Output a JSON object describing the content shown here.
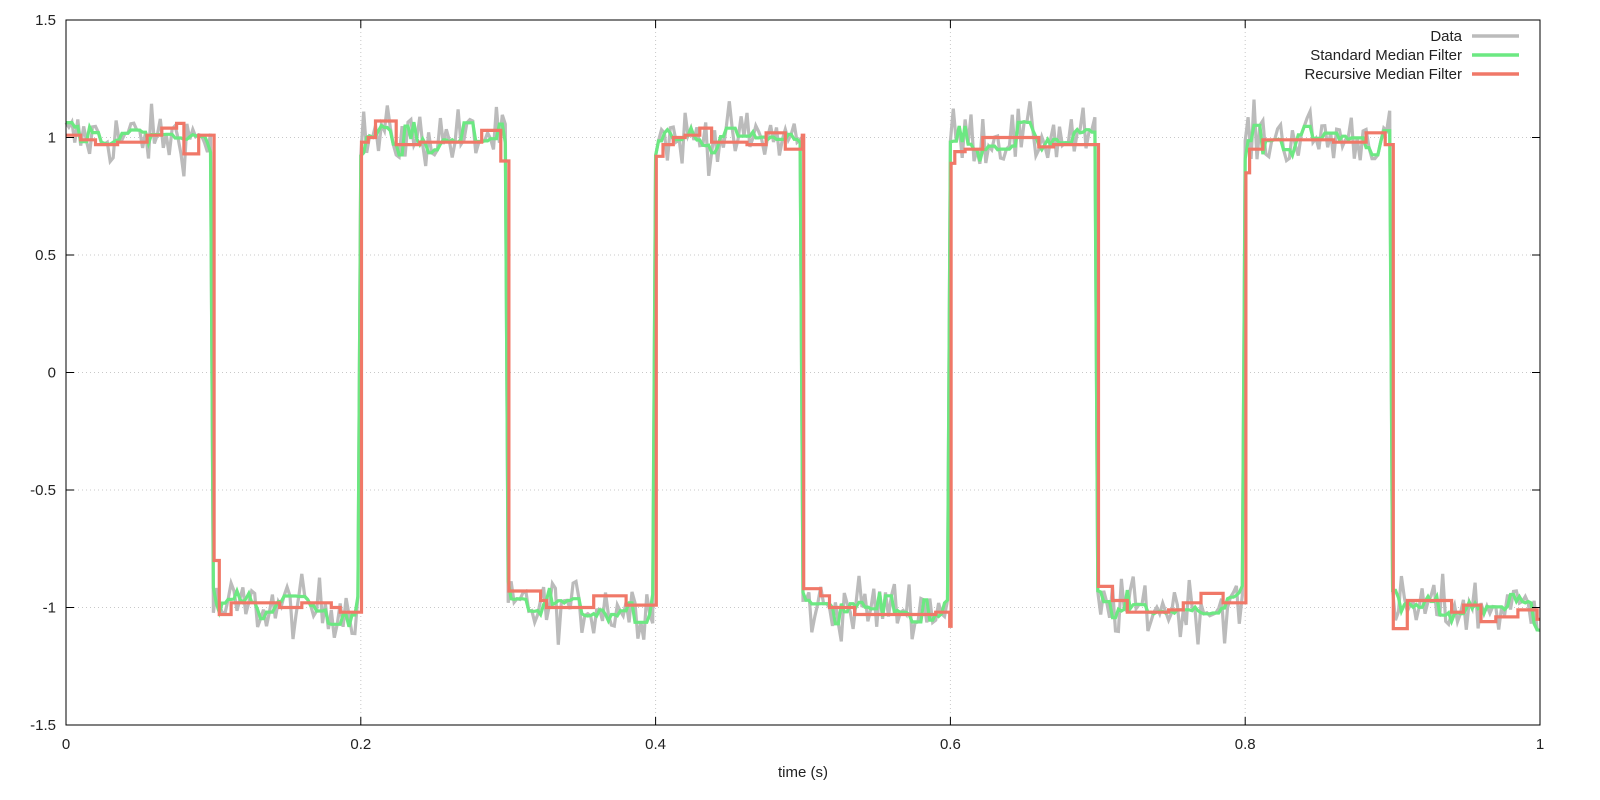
{
  "chart_data": {
    "type": "line",
    "xlabel": "time (s)",
    "ylabel": "",
    "xlim": [
      0,
      1
    ],
    "ylim": [
      -1.5,
      1.5
    ],
    "xticks": [
      0,
      0.2,
      0.4,
      0.6,
      0.8,
      1
    ],
    "xtick_labels": [
      "0",
      "0.2",
      "0.4",
      "0.6",
      "0.8",
      "1"
    ],
    "yticks": [
      -1.5,
      -1,
      -0.5,
      0,
      0.5,
      1,
      1.5
    ],
    "ytick_labels": [
      "-1.5",
      "-1",
      "-0.5",
      "0",
      "0.5",
      "1",
      "1.5"
    ],
    "grid": true,
    "legend_position": "top-right",
    "square_wave": {
      "period": 0.2,
      "high": 1,
      "low": -1,
      "first_level": 1
    },
    "series": [
      {
        "name": "Data",
        "color": "#bbbbbb",
        "noise_amplitude": 0.12,
        "description_level": "raw noisy square wave"
      },
      {
        "name": "Standard Median Filter",
        "color": "#6ce882",
        "noise_amplitude": 0.05
      },
      {
        "name": "Recursive Median Filter",
        "color": "#f07868",
        "steps": [
          [
            0,
            1.01
          ],
          [
            0.01,
            0.99
          ],
          [
            0.02,
            0.97
          ],
          [
            0.035,
            0.98
          ],
          [
            0.05,
            0.98
          ],
          [
            0.055,
            1.01
          ],
          [
            0.065,
            1.04
          ],
          [
            0.075,
            1.06
          ],
          [
            0.08,
            0.93
          ],
          [
            0.09,
            1.01
          ],
          [
            0.0995,
            1.01
          ],
          [
            0.1005,
            -0.8
          ],
          [
            0.104,
            -1.03
          ],
          [
            0.112,
            -0.98
          ],
          [
            0.145,
            -1.0
          ],
          [
            0.16,
            -0.98
          ],
          [
            0.18,
            -1.0
          ],
          [
            0.186,
            -1.02
          ],
          [
            0.1995,
            -1.02
          ],
          [
            0.2005,
            0.98
          ],
          [
            0.205,
            1.0
          ],
          [
            0.21,
            1.07
          ],
          [
            0.224,
            0.97
          ],
          [
            0.24,
            0.98
          ],
          [
            0.262,
            0.98
          ],
          [
            0.282,
            1.03
          ],
          [
            0.295,
            0.9
          ],
          [
            0.2995,
            0.9
          ],
          [
            0.3005,
            -0.93
          ],
          [
            0.322,
            -0.97
          ],
          [
            0.326,
            -1.0
          ],
          [
            0.358,
            -0.95
          ],
          [
            0.38,
            -0.99
          ],
          [
            0.3995,
            -0.99
          ],
          [
            0.4005,
            0.92
          ],
          [
            0.405,
            0.97
          ],
          [
            0.412,
            1.0
          ],
          [
            0.42,
            1.01
          ],
          [
            0.43,
            1.04
          ],
          [
            0.438,
            0.98
          ],
          [
            0.462,
            0.97
          ],
          [
            0.475,
            1.02
          ],
          [
            0.488,
            0.95
          ],
          [
            0.4995,
            1.01
          ],
          [
            0.5005,
            -0.92
          ],
          [
            0.512,
            -0.95
          ],
          [
            0.518,
            -1.0
          ],
          [
            0.535,
            -1.03
          ],
          [
            0.55,
            -1.03
          ],
          [
            0.57,
            -1.03
          ],
          [
            0.59,
            -1.02
          ],
          [
            0.5995,
            -1.08
          ],
          [
            0.6005,
            0.89
          ],
          [
            0.603,
            0.94
          ],
          [
            0.61,
            0.95
          ],
          [
            0.622,
            1.0
          ],
          [
            0.66,
            0.96
          ],
          [
            0.67,
            0.97
          ],
          [
            0.6995,
            0.97
          ],
          [
            0.7005,
            -0.91
          ],
          [
            0.71,
            -0.97
          ],
          [
            0.72,
            -1.02
          ],
          [
            0.748,
            -1.01
          ],
          [
            0.758,
            -0.98
          ],
          [
            0.77,
            -0.94
          ],
          [
            0.785,
            -0.98
          ],
          [
            0.7995,
            -0.98
          ],
          [
            0.8005,
            0.85
          ],
          [
            0.803,
            0.95
          ],
          [
            0.812,
            0.99
          ],
          [
            0.828,
            0.99
          ],
          [
            0.86,
            0.98
          ],
          [
            0.882,
            1.02
          ],
          [
            0.895,
            0.97
          ],
          [
            0.8995,
            0.97
          ],
          [
            0.9005,
            -1.09
          ],
          [
            0.91,
            -0.97
          ],
          [
            0.938,
            -0.97
          ],
          [
            0.94,
            -1.02
          ],
          [
            0.948,
            -0.99
          ],
          [
            0.96,
            -1.06
          ],
          [
            0.97,
            -1.04
          ],
          [
            0.985,
            -1.01
          ],
          [
            0.998,
            -1.05
          ],
          [
            1.0,
            -1.05
          ]
        ]
      }
    ]
  }
}
